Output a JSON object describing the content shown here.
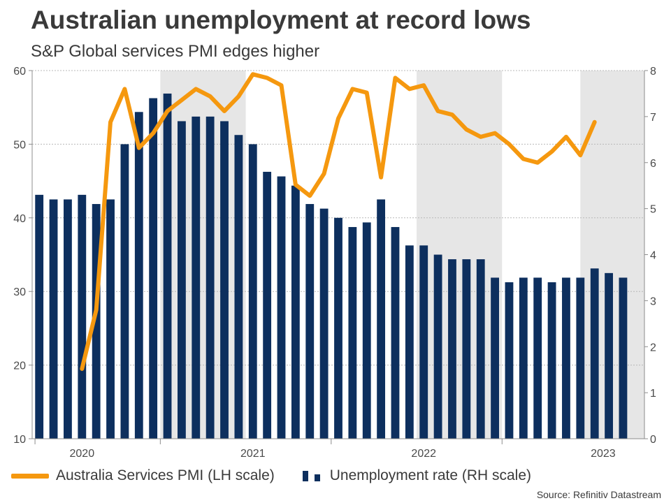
{
  "title": "Australian unemployment at record lows",
  "subtitle": "S&P Global services PMI edges higher",
  "source": "Source: Refinitiv Datastream",
  "colors": {
    "pmi": "#f5980f",
    "unemp": "#0d2f5e",
    "shade": "#e6e6e6",
    "grid": "#b8b8b8",
    "axis": "#8c8c8c"
  },
  "chart_data": {
    "type": "bar",
    "title": "Australian unemployment at record lows",
    "subtitle": "S&P Global services PMI edges higher",
    "x": [
      "2019-10",
      "2019-11",
      "2019-12",
      "2020-01",
      "2020-02",
      "2020-03",
      "2020-04",
      "2020-05",
      "2020-06",
      "2020-07",
      "2020-08",
      "2020-09",
      "2020-10",
      "2020-11",
      "2020-12",
      "2021-01",
      "2021-02",
      "2021-03",
      "2021-04",
      "2021-05",
      "2021-06",
      "2021-07",
      "2021-08",
      "2021-09",
      "2021-10",
      "2021-11",
      "2021-12",
      "2022-01",
      "2022-02",
      "2022-03",
      "2022-04",
      "2022-05",
      "2022-06",
      "2022-07",
      "2022-08",
      "2022-09",
      "2022-10",
      "2022-11",
      "2022-12",
      "2023-01",
      "2023-02",
      "2023-03",
      "2023-04"
    ],
    "x_tick_labels": [
      "2020",
      "2021",
      "2022",
      "2023"
    ],
    "y_left_ticks": [
      "10",
      "20",
      "30",
      "40",
      "50",
      "60"
    ],
    "y_right_ticks": [
      "0",
      "1",
      "2",
      "3",
      "4",
      "5",
      "6",
      "7",
      "8"
    ],
    "ylim_left": [
      10,
      60
    ],
    "ylim_right": [
      0,
      8
    ],
    "shaded_periods": [
      [
        "2020-07",
        "2020-12"
      ],
      [
        "2022-01",
        "2022-06"
      ]
    ],
    "series": [
      {
        "name": "Unemployment rate (RH scale)",
        "type": "bar",
        "axis": "right",
        "values": [
          5.3,
          5.2,
          5.2,
          5.3,
          5.1,
          5.2,
          6.4,
          7.1,
          7.4,
          7.5,
          6.9,
          7.0,
          7.0,
          6.9,
          6.6,
          6.4,
          5.8,
          5.7,
          5.5,
          5.1,
          5.0,
          4.8,
          4.6,
          4.7,
          5.2,
          4.6,
          4.2,
          4.2,
          4.0,
          3.9,
          3.9,
          3.9,
          3.5,
          3.4,
          3.5,
          3.5,
          3.4,
          3.5,
          3.5,
          3.7,
          3.6,
          3.5,
          null
        ]
      },
      {
        "name": "Australia Services PMI (LH scale)",
        "type": "line",
        "axis": "left",
        "values": [
          null,
          null,
          null,
          19.5,
          27.5,
          53.0,
          57.5,
          49.5,
          51.5,
          54.5,
          56.0,
          57.5,
          56.5,
          54.5,
          56.5,
          59.5,
          59.0,
          58.0,
          44.5,
          43.0,
          46.0,
          53.5,
          57.5,
          57.0,
          45.5,
          59.0,
          57.5,
          58.0,
          54.5,
          54.0,
          52.0,
          51.0,
          51.5,
          50.0,
          48.0,
          47.5,
          49.0,
          51.0,
          48.5,
          53.0,
          null,
          null,
          null
        ]
      }
    ],
    "legend": {
      "position": "bottom-left"
    }
  },
  "legend": {
    "pmi_label": "Australia Services PMI (LH scale)",
    "unemp_label": "Unemployment rate (RH scale)"
  }
}
